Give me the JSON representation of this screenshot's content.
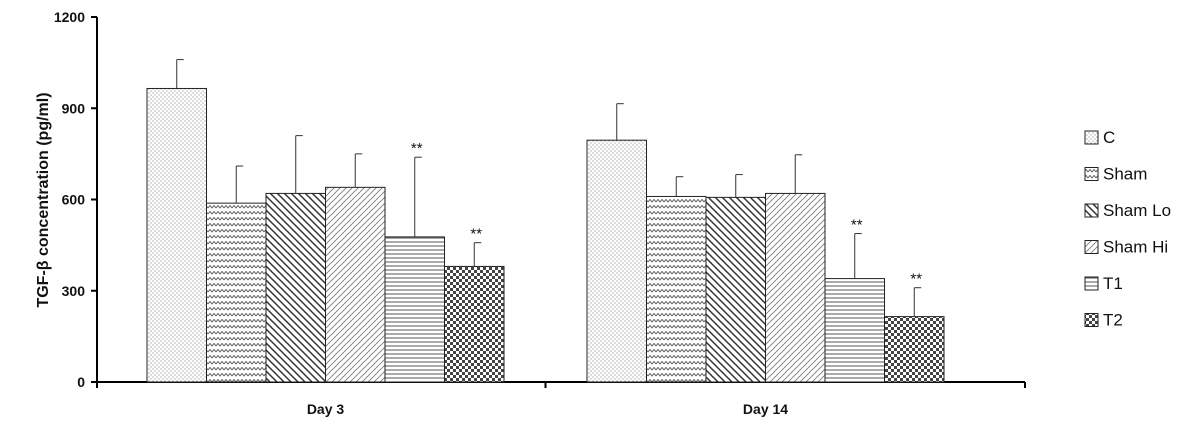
{
  "chart_data": {
    "type": "bar",
    "ylabel": "TGF-β concentration (pg/ml)",
    "xlabel": "",
    "ylim": [
      0,
      1200
    ],
    "yticks": [
      "0",
      "300",
      "600",
      "900",
      "1200"
    ],
    "categories": [
      "Day 3",
      "Day 14"
    ],
    "legend_position": "right",
    "grid": false,
    "series": [
      {
        "name": "C",
        "values": [
          965,
          795
        ],
        "errors": [
          95,
          120
        ],
        "pattern": "dots",
        "annotations": [
          "",
          ""
        ]
      },
      {
        "name": "Sham",
        "values": [
          588,
          610
        ],
        "errors": [
          122,
          65
        ],
        "pattern": "zigzag",
        "annotations": [
          "",
          ""
        ]
      },
      {
        "name": "Sham Lo",
        "values": [
          620,
          607
        ],
        "errors": [
          190,
          75
        ],
        "pattern": "diag-down",
        "annotations": [
          "",
          ""
        ]
      },
      {
        "name": "Sham Hi",
        "values": [
          640,
          620
        ],
        "errors": [
          110,
          127
        ],
        "pattern": "diag-up",
        "annotations": [
          "",
          ""
        ]
      },
      {
        "name": "T1",
        "values": [
          477,
          340
        ],
        "errors": [
          262,
          148
        ],
        "pattern": "horizontal",
        "annotations": [
          "**",
          "**"
        ]
      },
      {
        "name": "T2",
        "values": [
          380,
          215
        ],
        "errors": [
          78,
          95
        ],
        "pattern": "checker",
        "annotations": [
          "**",
          "**"
        ]
      }
    ]
  }
}
